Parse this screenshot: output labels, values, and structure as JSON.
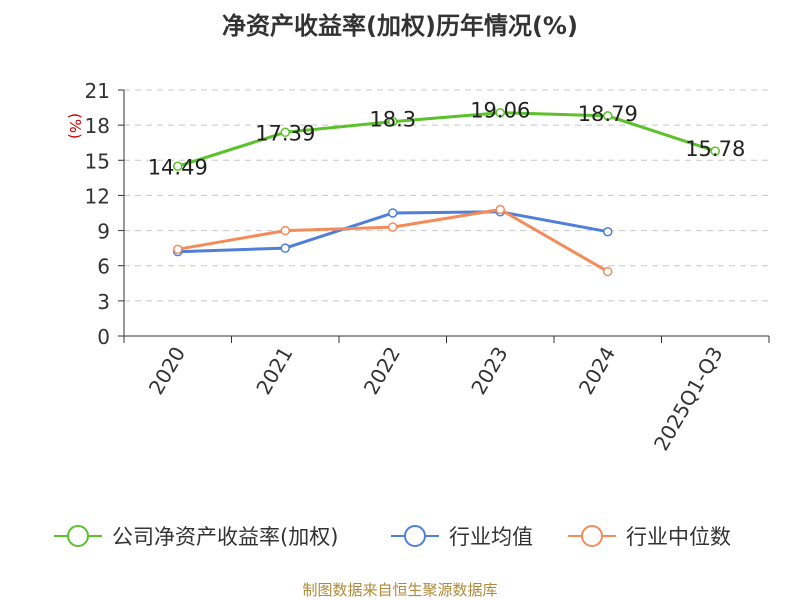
{
  "colors": {
    "company": "#5cc12a",
    "industry_avg": "#4f7fd8",
    "industry_median": "#f48b5a",
    "grid": "#c8c8c8",
    "axis": "#333333",
    "ylabel": "#cc0000",
    "source": "#b08a3a"
  },
  "chart_data": {
    "type": "line",
    "title": "净资产收益率(加权)历年情况(%)",
    "ylabel": "(%)",
    "categories": [
      "2020",
      "2021",
      "2022",
      "2023",
      "2024",
      "2025Q1-Q3"
    ],
    "ylim": [
      0,
      21
    ],
    "yticks": [
      0,
      3,
      6,
      9,
      12,
      15,
      18,
      21
    ],
    "grid": true,
    "legend_position": "bottom",
    "series": [
      {
        "name": "公司净资产收益率(加权)",
        "color_key": "company",
        "values": [
          14.49,
          17.39,
          18.3,
          19.06,
          18.79,
          15.78
        ],
        "show_labels": true
      },
      {
        "name": "行业均值",
        "color_key": "industry_avg",
        "values": [
          7.2,
          7.5,
          10.5,
          10.6,
          8.9,
          null
        ],
        "show_labels": false
      },
      {
        "name": "行业中位数",
        "color_key": "industry_median",
        "values": [
          7.4,
          9.0,
          9.3,
          10.8,
          5.5,
          null
        ],
        "show_labels": false
      }
    ],
    "data_labels": [
      "14.49",
      "17.39",
      "18.3",
      "19.06",
      "18.79",
      "15.78"
    ]
  },
  "source_text": "制图数据来自恒生聚源数据库"
}
